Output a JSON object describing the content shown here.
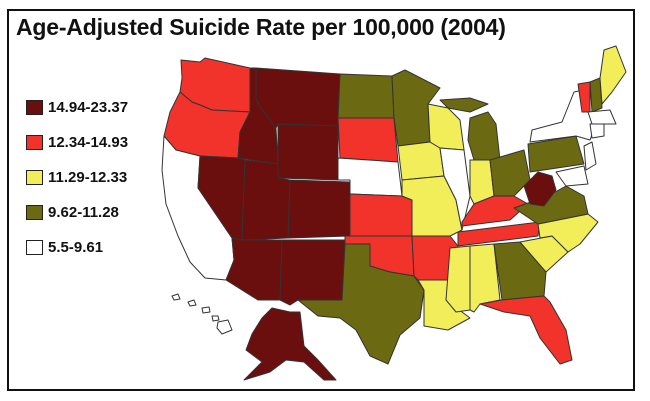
{
  "title": "Age-Adjusted Suicide Rate per 100,000 (2004)",
  "legend": [
    {
      "label": "14.94-23.37",
      "color": "#6b0e0e"
    },
    {
      "label": "12.34-14.93",
      "color": "#f2332b"
    },
    {
      "label": "11.29-12.33",
      "color": "#f2ee5a"
    },
    {
      "label": "9.62-11.28",
      "color": "#6b6a12"
    },
    {
      "label": "5.5-9.61",
      "color": "#ffffff"
    }
  ]
}
